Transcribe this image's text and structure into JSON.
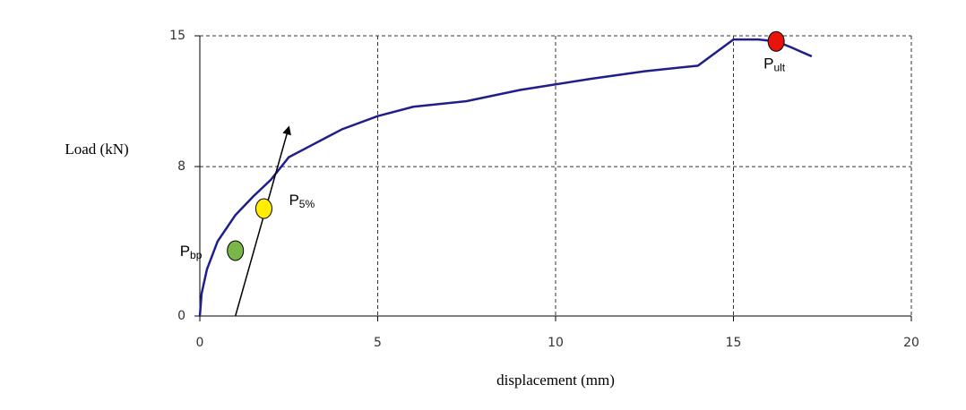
{
  "chart_data": {
    "type": "line",
    "x_label": "displacement (mm)",
    "y_label": "Load (kN)",
    "x": [
      0,
      0.05,
      0.2,
      0.5,
      1,
      1.5,
      2,
      2.5,
      3,
      3.5,
      4,
      5,
      6,
      7.5,
      9,
      10,
      11,
      12.5,
      14,
      15,
      15.7,
      16.2,
      16.6,
      17.2
    ],
    "values": [
      0,
      1.2,
      2.5,
      4.0,
      5.4,
      6.4,
      7.3,
      8.5,
      9.0,
      9.5,
      10.0,
      10.7,
      11.2,
      11.5,
      12.1,
      12.4,
      12.7,
      13.1,
      13.4,
      14.8,
      14.8,
      14.7,
      14.4,
      13.9
    ],
    "color": "#1f1f8a",
    "xlim": [
      0,
      20
    ],
    "xticks": [
      0,
      5,
      10,
      15,
      20
    ],
    "ylim": [
      0,
      15
    ],
    "yticks": [
      0,
      8,
      15
    ],
    "grid": true,
    "points": [
      {
        "label": "P",
        "sub": "bp",
        "x": 1,
        "y": 3.5,
        "color": "#7ab648"
      },
      {
        "label": "P",
        "sub": "5%",
        "x": 1.8,
        "y": 5.75,
        "color": "#ffee00"
      },
      {
        "label": "P",
        "sub": "ult",
        "x": 16.2,
        "y": 14.7,
        "color": "#e8140c"
      }
    ],
    "arrow": {
      "x": [
        1,
        2.5
      ],
      "y": [
        0,
        10.1
      ]
    }
  }
}
